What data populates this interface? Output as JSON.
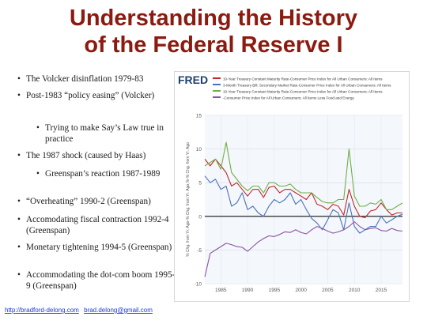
{
  "slide": {
    "title_line1": "Understanding the History",
    "title_line2": "of the Federal Reserve I"
  },
  "bullets": [
    {
      "text": "The Volcker disinflation 1979-83",
      "level": 1
    },
    {
      "text": "Post-1983 “policy easing” (Volcker)",
      "level": 1
    },
    {
      "text": "Trying to make Say’s Law true in practice",
      "level": 2
    },
    {
      "text": "The 1987 shock (caused by Haas)",
      "level": 1
    },
    {
      "text": "Greenspan’s reaction 1987-1989",
      "level": 2
    },
    {
      "text": "“Overheating” 1990-2 (Greenspan)",
      "level": 1
    },
    {
      "text": "Accomodating fiscal contraction 1992-4 (Greenspan)",
      "level": 1
    },
    {
      "text": "Monetary tightening 1994-5 (Greenspan)",
      "level": 1
    },
    {
      "text": "Accommodating the dot-com boom 1995-9 (Greenspan)",
      "level": 1
    }
  ],
  "footer": {
    "link1": "http://bradford-delong.com",
    "link2": "brad.delong@gmail.com"
  },
  "chart_data": {
    "type": "line",
    "source_logo": "FRED",
    "ylabel": "% Chg. from Yr. Ago-% Chg. from Yr. Ago,%-% Chg. from Yr. Ago",
    "xlim": [
      1982,
      2019
    ],
    "ylim": [
      -10,
      15
    ],
    "yticks": [
      -10,
      -5,
      0,
      5,
      10,
      15
    ],
    "xticks": [
      1985,
      1990,
      1995,
      2000,
      2005,
      2010,
      2015
    ],
    "grid": true,
    "legend_position": "top",
    "series": [
      {
        "name": "10-Year Treasury Constant Maturity Rate-Consumer Price Index for All Urban Consumers: All Items",
        "color": "#c0282d",
        "x": [
          1982,
          1983,
          1984,
          1985,
          1986,
          1987,
          1988,
          1989,
          1990,
          1991,
          1992,
          1993,
          1994,
          1995,
          1996,
          1997,
          1998,
          1999,
          2000,
          2001,
          2002,
          2003,
          2004,
          2005,
          2006,
          2007,
          2008,
          2009,
          2010,
          2011,
          2012,
          2013,
          2014,
          2015,
          2016,
          2017,
          2018,
          2019
        ],
        "y": [
          8.5,
          7.5,
          8.5,
          7.5,
          6.5,
          4.5,
          5.0,
          4.0,
          3.0,
          4.0,
          4.0,
          2.8,
          4.3,
          4.5,
          3.5,
          4.0,
          4.0,
          3.5,
          3.0,
          2.5,
          3.5,
          1.8,
          1.5,
          1.0,
          1.8,
          1.5,
          0.2,
          4.0,
          1.5,
          0.0,
          -0.2,
          0.8,
          1.0,
          2.0,
          1.0,
          0.2,
          0.5,
          0.5
        ]
      },
      {
        "name": "3-Month Treasury Bill: Secondary Market Rate-Consumer Price Index for All Urban Consumers: All Items",
        "color": "#4a72b8",
        "x": [
          1982,
          1983,
          1984,
          1985,
          1986,
          1987,
          1988,
          1989,
          1990,
          1991,
          1992,
          1993,
          1994,
          1995,
          1996,
          1997,
          1998,
          1999,
          2000,
          2001,
          2002,
          2003,
          2004,
          2005,
          2006,
          2007,
          2008,
          2009,
          2010,
          2011,
          2012,
          2013,
          2014,
          2015,
          2016,
          2017,
          2018,
          2019
        ],
        "y": [
          6.0,
          5.0,
          5.5,
          4.0,
          4.5,
          1.5,
          2.0,
          3.5,
          1.0,
          1.5,
          0.5,
          0.0,
          1.5,
          2.5,
          2.0,
          2.5,
          3.5,
          1.8,
          2.5,
          1.0,
          -0.3,
          -1.0,
          -2.0,
          -0.5,
          1.0,
          0.5,
          -2.0,
          2.0,
          -1.5,
          -2.5,
          -2.0,
          -1.5,
          -1.5,
          0.0,
          -1.0,
          -0.5,
          0.0,
          0.3
        ]
      },
      {
        "name": "10-Year Treasury Constant Maturity Rate-Consumer Price Index for All Urban Consumers: All Items",
        "color": "#6faf45",
        "x": [
          1982,
          1983,
          1984,
          1985,
          1986,
          1987,
          1988,
          1989,
          1990,
          1991,
          1992,
          1993,
          1994,
          1995,
          1996,
          1997,
          1998,
          1999,
          2000,
          2001,
          2002,
          2003,
          2004,
          2005,
          2006,
          2007,
          2008,
          2009,
          2010,
          2011,
          2012,
          2013,
          2014,
          2015,
          2016,
          2017,
          2018,
          2019
        ],
        "y": [
          7.5,
          8.0,
          8.5,
          7.0,
          11.0,
          6.5,
          5.5,
          4.5,
          3.8,
          4.5,
          4.5,
          3.5,
          5.0,
          5.0,
          4.5,
          4.5,
          4.8,
          4.0,
          3.5,
          3.5,
          3.5,
          2.8,
          2.2,
          2.0,
          2.0,
          2.5,
          2.5,
          10.0,
          3.0,
          1.5,
          1.5,
          2.0,
          1.8,
          2.5,
          1.0,
          1.0,
          1.5,
          2.0
        ]
      },
      {
        "name": "-Consumer Price Index for All Urban Consumers: All Items Less Food and Energy",
        "color": "#8a55a0",
        "x": [
          1982,
          1983,
          1984,
          1985,
          1986,
          1987,
          1988,
          1989,
          1990,
          1991,
          1992,
          1993,
          1994,
          1995,
          1996,
          1997,
          1998,
          1999,
          2000,
          2001,
          2002,
          2003,
          2004,
          2005,
          2006,
          2007,
          2008,
          2009,
          2010,
          2011,
          2012,
          2013,
          2014,
          2015,
          2016,
          2017,
          2018,
          2019
        ],
        "y": [
          -9.0,
          -5.5,
          -5.0,
          -4.5,
          -4.0,
          -4.2,
          -4.5,
          -4.6,
          -5.2,
          -4.5,
          -3.8,
          -3.3,
          -2.9,
          -3.0,
          -2.7,
          -2.3,
          -2.4,
          -2.0,
          -2.4,
          -2.6,
          -2.0,
          -1.5,
          -1.8,
          -2.2,
          -2.5,
          -2.3,
          -2.0,
          -1.5,
          -0.8,
          -1.5,
          -2.0,
          -1.8,
          -1.7,
          -2.1,
          -2.2,
          -1.8,
          -2.1,
          -2.2
        ]
      }
    ]
  }
}
